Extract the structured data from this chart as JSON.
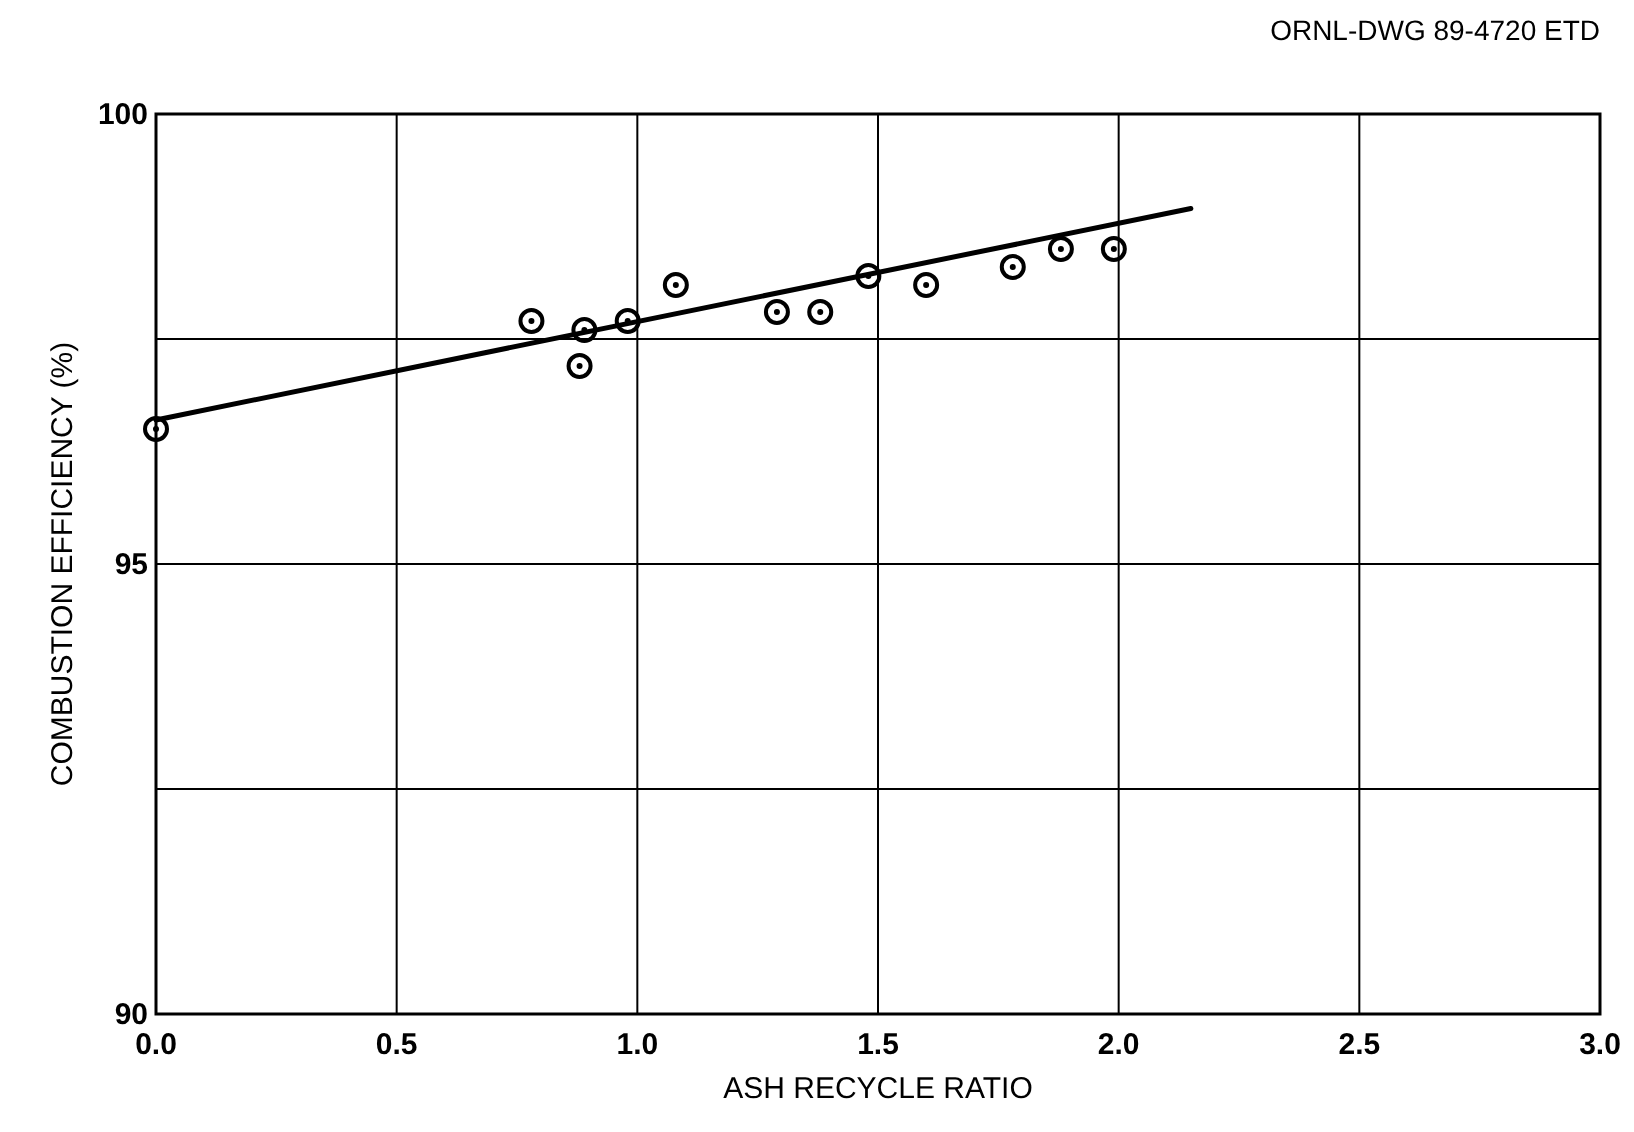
{
  "chart_data": {
    "type": "scatter",
    "xlabel": "ASH RECYCLE RATIO",
    "ylabel": "COMBUSTION EFFICIENCY (%)",
    "annotations": [
      "ORNL-DWG 89-4720 ETD"
    ],
    "xlim": [
      0,
      3
    ],
    "xticks": [
      {
        "value": 0,
        "label": "0.0"
      },
      0.5,
      {
        "value": 1,
        "label": "1.0"
      },
      1.5,
      {
        "value": 2,
        "label": "2.0"
      },
      2.5,
      {
        "value": 3,
        "label": "3.0"
      }
    ],
    "ylim": [
      90,
      100
    ],
    "yticks": [
      90,
      {
        "value": 92.5,
        "label": null
      },
      95,
      {
        "value": 97.5,
        "label": null
      },
      100
    ],
    "grid": true,
    "series": [
      {
        "color": "#000000",
        "marker": "circle",
        "x": [
          0,
          0.78,
          0.88,
          0.89,
          0.98,
          1.08,
          1.29,
          1.38,
          1.48,
          1.6,
          1.78,
          1.88,
          1.99
        ],
        "values": [
          96.5,
          97.7,
          97.2,
          97.6,
          97.7,
          98.1,
          97.8,
          97.8,
          98.2,
          98.1,
          98.3,
          98.5,
          98.5
        ]
      },
      {
        "type": "line",
        "color": "#000000",
        "marker": "none",
        "line_style": "solid",
        "x": [
          0,
          2.15
        ],
        "values": [
          96.6,
          98.95
        ]
      }
    ]
  }
}
